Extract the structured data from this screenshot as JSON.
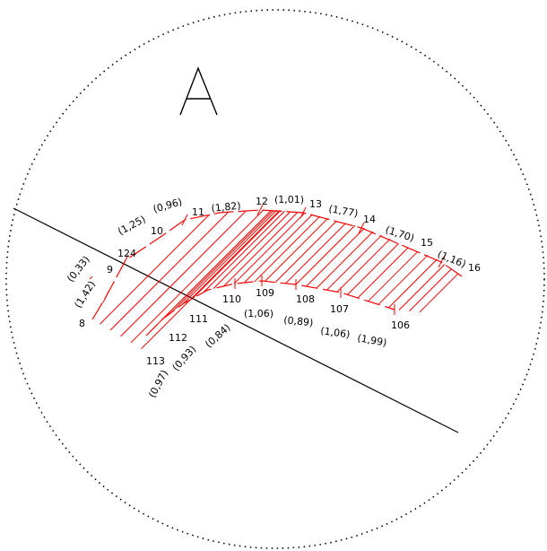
{
  "detail_letter": "A",
  "colors": {
    "hatch": "#ff0000",
    "ink": "#000000",
    "background": "#ffffff"
  },
  "upper_points": [
    {
      "id": "8"
    },
    {
      "id": "9"
    },
    {
      "id": "124"
    },
    {
      "id": "10"
    },
    {
      "id": "11"
    },
    {
      "id": "12"
    },
    {
      "id": "13"
    },
    {
      "id": "14"
    },
    {
      "id": "15"
    },
    {
      "id": "16"
    }
  ],
  "upper_measures": [
    "(1,42)",
    "(0,33)",
    "(1,25)",
    "(0,96)",
    "(1,82)",
    "(1,01)",
    "(1,77)",
    "(1,70)",
    "(1,16)"
  ],
  "lower_points": [
    {
      "id": "113"
    },
    {
      "id": "112"
    },
    {
      "id": "111"
    },
    {
      "id": "110"
    },
    {
      "id": "109"
    },
    {
      "id": "108"
    },
    {
      "id": "107"
    },
    {
      "id": "106"
    }
  ],
  "lower_measures": [
    "(0,97)",
    "(0,93)",
    "(0,84)",
    "(1,06)",
    "(0,89)",
    "(1,06)",
    "(1,99)"
  ]
}
